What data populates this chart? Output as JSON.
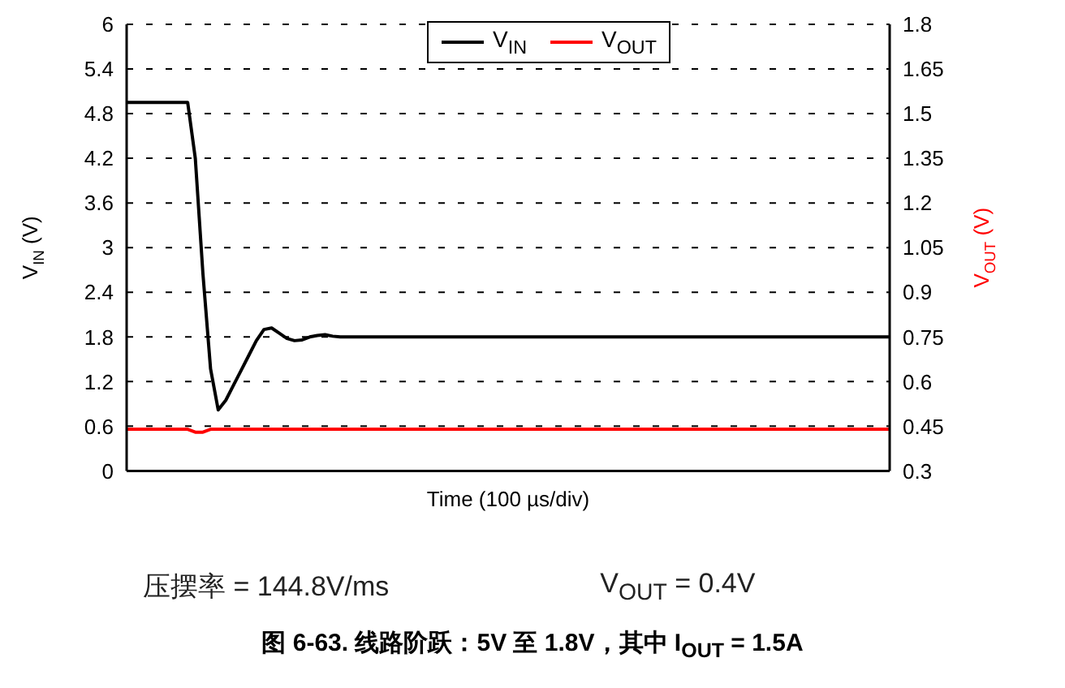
{
  "chart_data": {
    "type": "line",
    "title": "图 6-63. 线路阶跃：5V 至 1.8V，其中 I$_{OUT}$ = 1.5A",
    "xlabel": "Time (100 µs/div)",
    "ylabel": "V$_{IN}$ (V)",
    "y2label": "V$_{OUT}$ (V)",
    "annotations": [
      "压摆率 = 144.8V/ms",
      "V$_{OUT}$ = 0.4V"
    ],
    "categories": [
      null,
      null,
      null,
      null,
      null,
      null,
      null,
      null,
      null,
      null,
      null,
      null,
      null,
      null,
      null,
      null,
      null,
      null,
      null,
      null,
      null,
      null,
      null,
      null,
      null,
      null,
      null,
      null,
      null,
      null,
      null,
      null,
      null,
      null,
      null,
      null,
      null,
      null,
      null,
      null,
      null,
      null,
      null,
      null,
      null,
      null,
      null,
      null,
      null,
      null,
      null,
      null,
      null,
      null,
      null,
      null,
      null,
      null,
      null,
      null,
      null,
      null,
      null,
      null,
      null,
      null,
      null,
      null,
      null,
      null,
      null,
      null,
      null,
      null,
      null,
      null,
      null,
      null,
      null,
      null,
      null,
      null,
      null,
      null,
      null,
      null,
      null,
      null,
      null,
      null,
      null,
      null,
      null,
      null,
      null,
      null,
      null,
      null,
      null,
      null,
      null
    ],
    "series": [
      {
        "name": "V$_{IN}$",
        "color": "#000000",
        "values": [
          4.95,
          4.95,
          4.95,
          4.95,
          4.95,
          4.95,
          4.95,
          4.95,
          4.95,
          4.2,
          2.65,
          1.37,
          0.82,
          0.95,
          1.15,
          1.35,
          1.55,
          1.75,
          1.9,
          1.92,
          1.85,
          1.78,
          1.75,
          1.76,
          1.8,
          1.82,
          1.83,
          1.81,
          1.8,
          1.8,
          1.8,
          1.8,
          1.8,
          1.8,
          1.8,
          1.8,
          1.8,
          1.8,
          1.8,
          1.8,
          1.8,
          1.8,
          1.8,
          1.8,
          1.8,
          1.8,
          1.8,
          1.8,
          1.8,
          1.8,
          1.8,
          1.8,
          1.8,
          1.8,
          1.8,
          1.8,
          1.8,
          1.8,
          1.8,
          1.8,
          1.8,
          1.8,
          1.8,
          1.8,
          1.8,
          1.8,
          1.8,
          1.8,
          1.8,
          1.8,
          1.8,
          1.8,
          1.8,
          1.8,
          1.8,
          1.8,
          1.8,
          1.8,
          1.8,
          1.8,
          1.8,
          1.8,
          1.8,
          1.8,
          1.8,
          1.8,
          1.8,
          1.8,
          1.8,
          1.8,
          1.8,
          1.8,
          1.8,
          1.8,
          1.8,
          1.8,
          1.8,
          1.8,
          1.8,
          1.8,
          1.8
        ]
      },
      {
        "name": "V$_{OUT}$",
        "color": "#ff0000",
        "axis": "y2",
        "values": [
          0.44,
          0.44,
          0.44,
          0.44,
          0.44,
          0.44,
          0.44,
          0.44,
          0.44,
          0.43,
          0.43,
          0.44,
          0.44,
          0.44,
          0.44,
          0.44,
          0.44,
          0.44,
          0.44,
          0.44,
          0.44,
          0.44,
          0.44,
          0.44,
          0.44,
          0.44,
          0.44,
          0.44,
          0.44,
          0.44,
          0.44,
          0.44,
          0.44,
          0.44,
          0.44,
          0.44,
          0.44,
          0.44,
          0.44,
          0.44,
          0.44,
          0.44,
          0.44,
          0.44,
          0.44,
          0.44,
          0.44,
          0.44,
          0.44,
          0.44,
          0.44,
          0.44,
          0.44,
          0.44,
          0.44,
          0.44,
          0.44,
          0.44,
          0.44,
          0.44,
          0.44,
          0.44,
          0.44,
          0.44,
          0.44,
          0.44,
          0.44,
          0.44,
          0.44,
          0.44,
          0.44,
          0.44,
          0.44,
          0.44,
          0.44,
          0.44,
          0.44,
          0.44,
          0.44,
          0.44,
          0.44,
          0.44,
          0.44,
          0.44,
          0.44,
          0.44,
          0.44,
          0.44,
          0.44,
          0.44,
          0.44,
          0.44,
          0.44,
          0.44,
          0.44,
          0.44,
          0.44,
          0.44,
          0.44,
          0.44,
          0.44
        ]
      }
    ],
    "ylim": [
      0,
      6
    ],
    "yticks": [
      0,
      0.6,
      1.2,
      1.8,
      2.4,
      3,
      3.6,
      4.2,
      4.8,
      5.4,
      6
    ],
    "y2lim": [
      0.3,
      1.8
    ],
    "y2ticks": [
      0.3,
      0.45,
      0.6,
      0.75,
      0.9,
      1.05,
      1.2,
      1.35,
      1.5,
      1.65,
      1.8
    ],
    "grid": true,
    "legend": "top",
    "marker": "none",
    "line_style": "solid"
  }
}
